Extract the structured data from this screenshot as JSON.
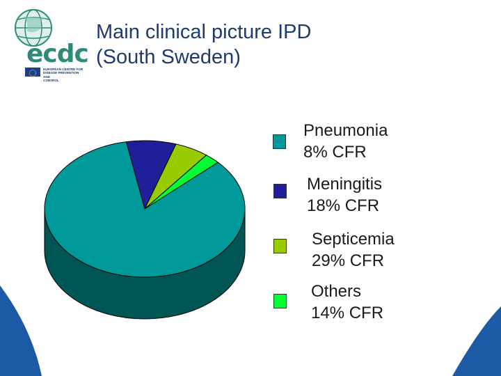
{
  "logo": {
    "name": "ecdc",
    "subtitle_lines": [
      "EUROPEAN CENTRE FOR",
      "DISEASE PREVENTION AND",
      "CONTROL"
    ]
  },
  "title": {
    "line1": "Main clinical picture IPD",
    "line2": "(South Sweden)"
  },
  "chart_data": {
    "type": "pie",
    "style": "3d",
    "legend_position": "right",
    "slices": [
      {
        "label": "Pneumonia",
        "note": "8% CFR",
        "value": 84,
        "color": "#009999"
      },
      {
        "label": "Meningitis",
        "note": "18% CFR",
        "value": 8,
        "color": "#1f1f99"
      },
      {
        "label": "Septicemia",
        "note": "29% CFR",
        "value": 5.5,
        "color": "#99cc00"
      },
      {
        "label": "Others",
        "note": "14% CFR",
        "value": 2.5,
        "color": "#00ff33"
      }
    ]
  },
  "colors": {
    "title": "#1d3b6e",
    "decor_blue": "#1c5aa6",
    "pie_side": "#005555"
  }
}
